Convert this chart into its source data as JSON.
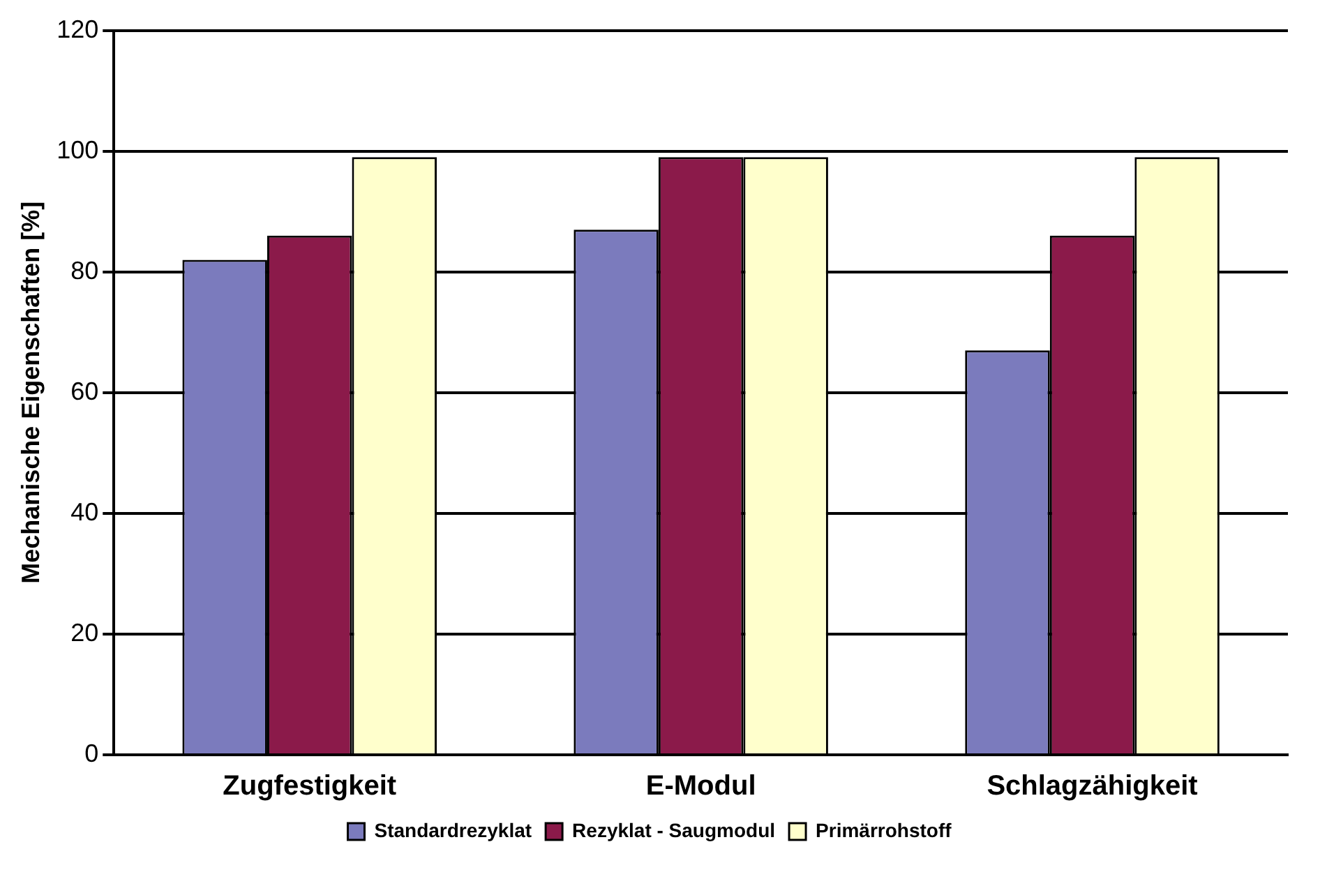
{
  "chart_data": {
    "type": "bar",
    "ylabel": "Mechanische Eigenschaften [%]",
    "categories": [
      "Zugfestigkeit",
      "E-Modul",
      "Schlagzähigkeit"
    ],
    "series": [
      {
        "name": "Standardrezyklat",
        "color": "#7b7bbd",
        "values": [
          82,
          87,
          67
        ]
      },
      {
        "name": "Rezyklat - Saugmodul",
        "color": "#8b1a4a",
        "values": [
          86,
          99,
          86
        ]
      },
      {
        "name": "Primärrohstoff",
        "color": "#ffffcc",
        "values": [
          99,
          99,
          99
        ]
      }
    ],
    "ylim": [
      0,
      120
    ],
    "yticks": [
      0,
      20,
      40,
      60,
      80,
      100,
      120
    ],
    "grid": "y",
    "legend": "bottom"
  }
}
